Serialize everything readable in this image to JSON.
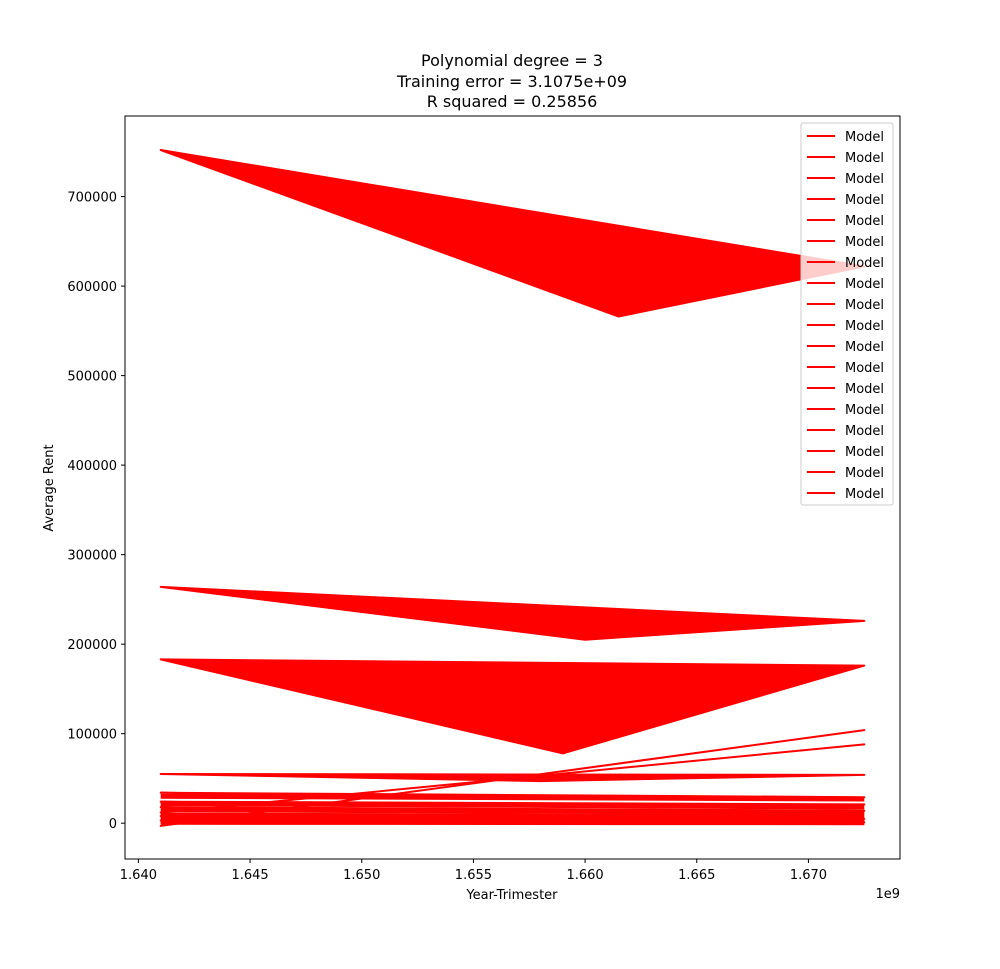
{
  "chart_data": {
    "type": "line",
    "title_lines": [
      "Polynomial degree = 3",
      "Training error = 3.1075e+09",
      "R squared = 0.25856"
    ],
    "xlabel": "Year-Trimester",
    "ylabel": "Average Rent",
    "x_offset_label": "1e9",
    "xlim": [
      1.6394,
      1.6741
    ],
    "ylim": [
      -40000,
      790000
    ],
    "x_ticks": [
      1.64,
      1.645,
      1.65,
      1.655,
      1.66,
      1.665,
      1.67
    ],
    "x_tick_labels": [
      "1.640",
      "1.645",
      "1.650",
      "1.655",
      "1.660",
      "1.665",
      "1.670"
    ],
    "y_ticks": [
      0,
      100000,
      200000,
      300000,
      400000,
      500000,
      600000,
      700000
    ],
    "y_tick_labels": [
      "0",
      "100000",
      "200000",
      "300000",
      "400000",
      "500000",
      "600000",
      "700000"
    ],
    "grid": false,
    "legend_position": "top-right",
    "line_color": "#ff0000",
    "series": [
      {
        "name": "Model",
        "x": [
          1.641,
          1.6615,
          1.6725,
          1.641
        ],
        "values": [
          752000,
          566000,
          622000,
          752000
        ]
      },
      {
        "name": "Model",
        "x": [
          1.641,
          1.66,
          1.6725,
          1.641
        ],
        "values": [
          264000,
          205000,
          226000,
          264000
        ]
      },
      {
        "name": "Model",
        "x": [
          1.641,
          1.659,
          1.6725,
          1.641
        ],
        "values": [
          183000,
          78000,
          176000,
          183000
        ]
      },
      {
        "name": "Model",
        "x": [
          1.641,
          1.6725,
          1.641
        ],
        "values": [
          -3000,
          104000,
          -3000
        ]
      },
      {
        "name": "Model",
        "x": [
          1.641,
          1.6725,
          1.641
        ],
        "values": [
          12000,
          88000,
          12000
        ]
      },
      {
        "name": "Model",
        "x": [
          1.641,
          1.658,
          1.6725,
          1.641
        ],
        "values": [
          55000,
          47000,
          54000,
          55000
        ]
      },
      {
        "name": "Model",
        "x": [
          1.641,
          1.658,
          1.6725,
          1.641
        ],
        "values": [
          34000,
          28000,
          29000,
          34000
        ]
      },
      {
        "name": "Model",
        "x": [
          1.641,
          1.658,
          1.6725,
          1.641
        ],
        "values": [
          24000,
          19000,
          21000,
          24000
        ]
      },
      {
        "name": "Model",
        "x": [
          1.641,
          1.658,
          1.6725,
          1.641
        ],
        "values": [
          18000,
          12000,
          14000,
          18000
        ]
      },
      {
        "name": "Model",
        "x": [
          1.641,
          1.658,
          1.6725,
          1.641
        ],
        "values": [
          8000,
          3000,
          5000,
          8000
        ]
      },
      {
        "name": "Model",
        "x": [
          1.641,
          1.658,
          1.6725,
          1.641
        ],
        "values": [
          3000,
          0,
          1000,
          3000
        ]
      },
      {
        "name": "Model",
        "x": [
          1.641,
          1.6725
        ],
        "values": [
          22000,
          18000
        ]
      },
      {
        "name": "Model",
        "x": [
          1.641,
          1.6725
        ],
        "values": [
          15000,
          12000
        ]
      },
      {
        "name": "Model",
        "x": [
          1.641,
          1.6725
        ],
        "values": [
          5000,
          2000
        ]
      },
      {
        "name": "Model",
        "x": [
          1.641,
          1.6725
        ],
        "values": [
          30000,
          27000
        ]
      },
      {
        "name": "Model",
        "x": [
          1.641,
          1.6725
        ],
        "values": [
          1000,
          500
        ]
      },
      {
        "name": "Model",
        "x": [
          1.641,
          1.6725
        ],
        "values": [
          9000,
          7000
        ]
      },
      {
        "name": "Model",
        "x": [
          1.641,
          1.6725
        ],
        "values": [
          2000,
          1000
        ]
      }
    ]
  }
}
